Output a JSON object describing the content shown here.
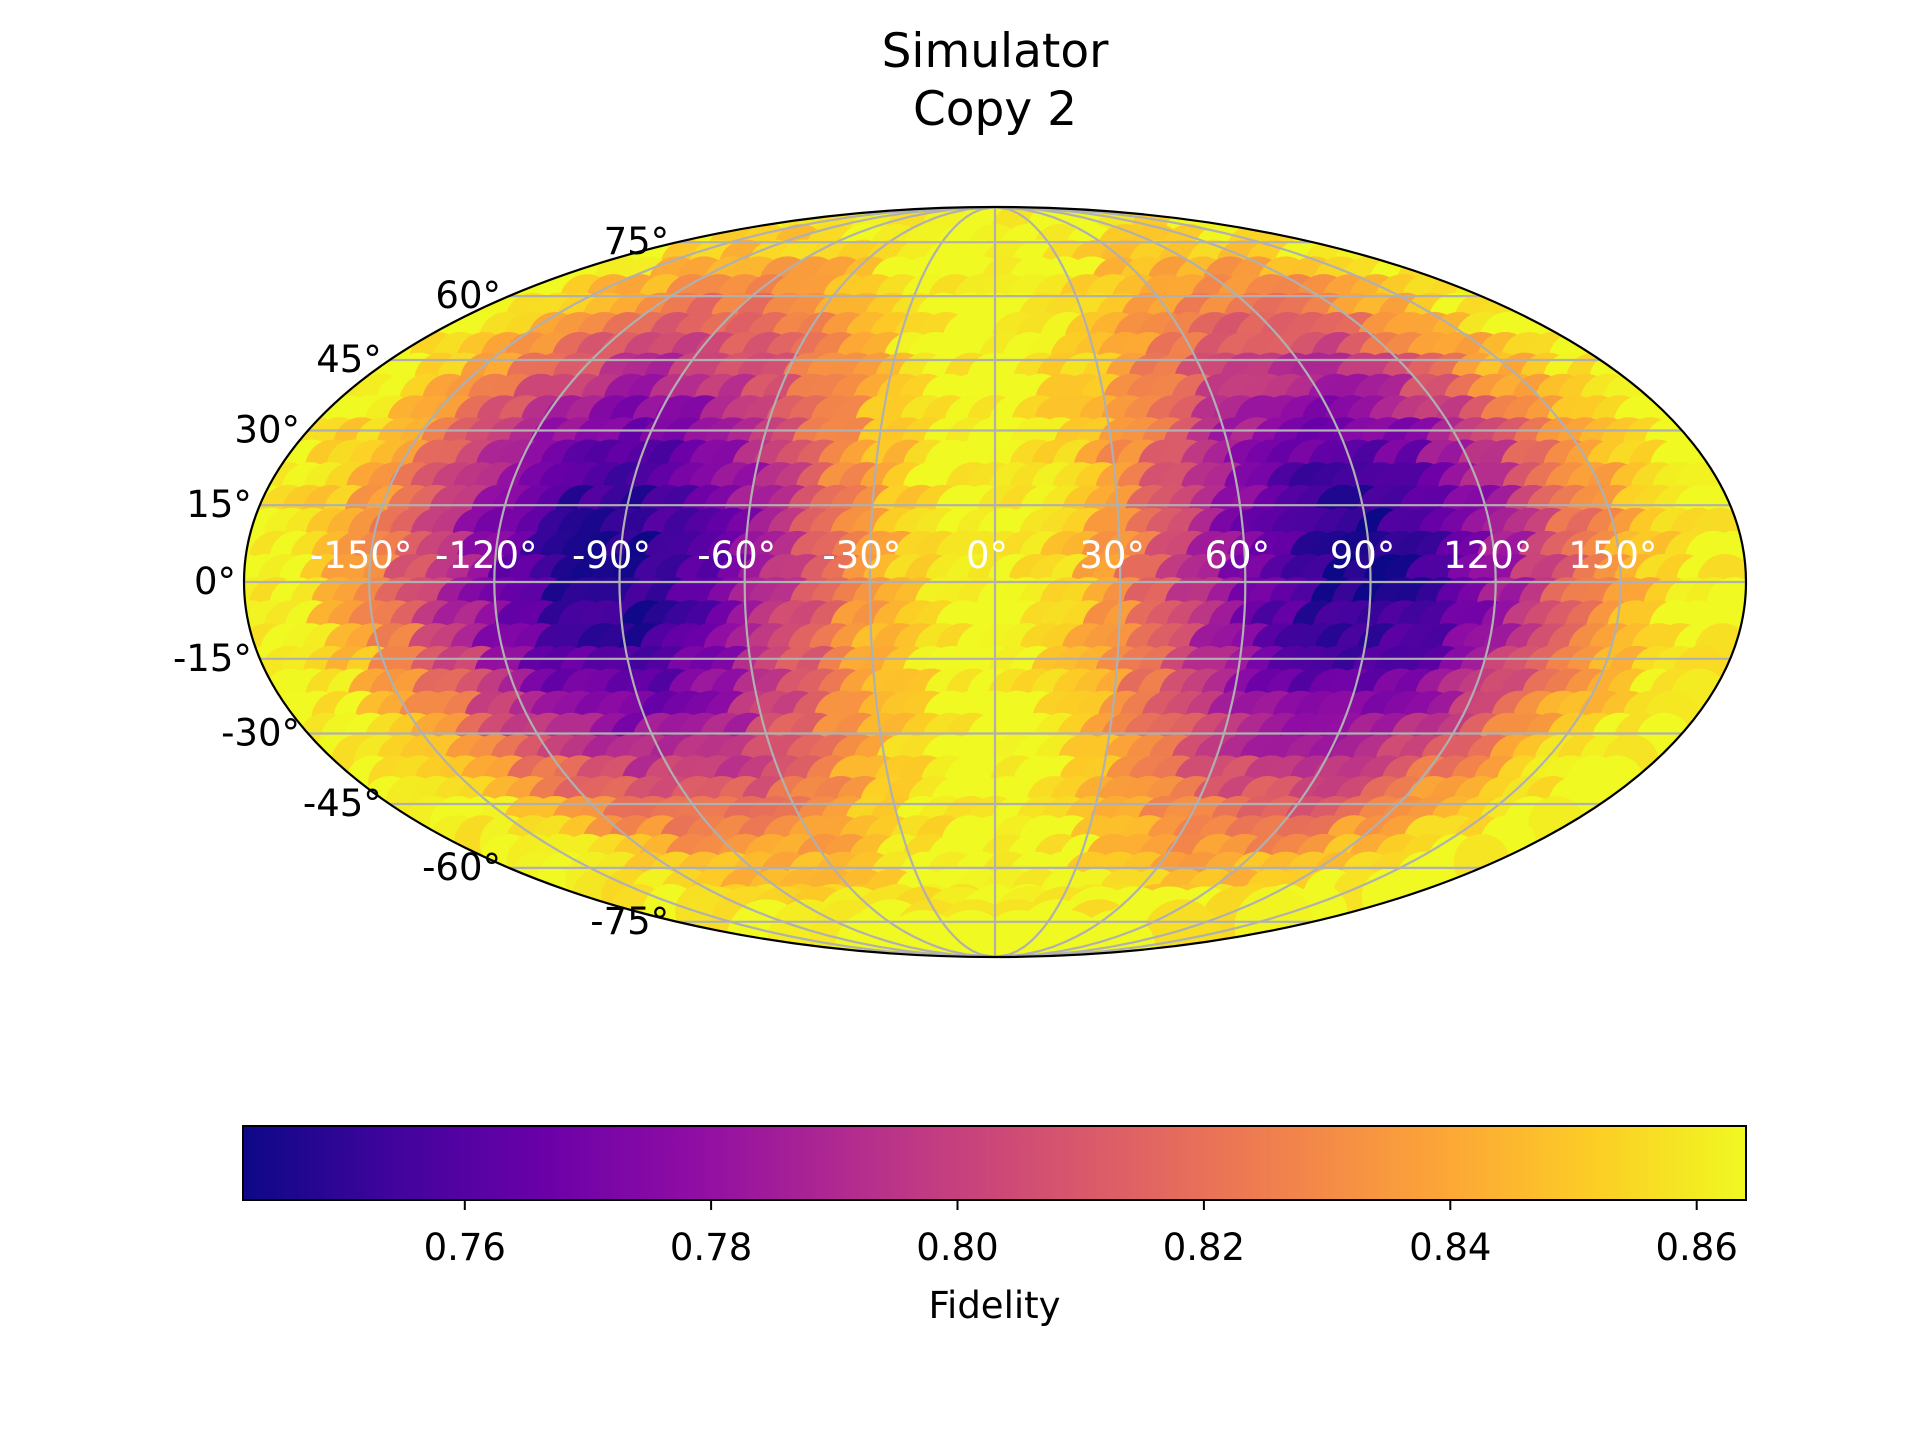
{
  "chart_data": {
    "type": "heatmap",
    "projection": "mollweide",
    "title": [
      "Simulator",
      "Copy 2"
    ],
    "colormap": "plasma",
    "colorbar": {
      "label": "Fidelity",
      "range": [
        0.742,
        0.864
      ],
      "ticks": [
        "0.76",
        "0.78",
        "0.80",
        "0.82",
        "0.84",
        "0.86"
      ],
      "tick_values": [
        0.76,
        0.78,
        0.8,
        0.82,
        0.84,
        0.86
      ],
      "orientation": "horizontal"
    },
    "x_ticks": [
      "-150°",
      "-120°",
      "-90°",
      "-60°",
      "-30°",
      "0°",
      "30°",
      "60°",
      "90°",
      "120°",
      "150°"
    ],
    "x_tick_values": [
      -150,
      -120,
      -90,
      -60,
      -30,
      0,
      30,
      60,
      90,
      120,
      150
    ],
    "y_ticks": [
      "75°",
      "60°",
      "45°",
      "30°",
      "15°",
      "0°",
      "-15°",
      "-30°",
      "-45°",
      "-60°",
      "-75°"
    ],
    "y_tick_values": [
      75,
      60,
      45,
      30,
      15,
      0,
      -15,
      -30,
      -45,
      -60,
      -75
    ],
    "grid": true,
    "field": {
      "description_of_values": "fidelity over longitude/latitude",
      "max_fidelity_regions": [
        {
          "lon": 0,
          "lat": 0,
          "value": 0.86
        },
        {
          "lon": 180,
          "lat": 0,
          "value": 0.86
        },
        {
          "lon": 0,
          "lat": 90,
          "value": 0.86
        },
        {
          "lon": 0,
          "lat": -90,
          "value": 0.86
        }
      ],
      "min_fidelity_regions": [
        {
          "lon": -90,
          "lat": 0,
          "value": 0.745
        },
        {
          "lon": 90,
          "lat": 0,
          "value": 0.745
        }
      ],
      "samples": [
        {
          "lon": 0,
          "lat": 0,
          "value": 0.855
        },
        {
          "lon": -90,
          "lat": 0,
          "value": 0.746
        },
        {
          "lon": 90,
          "lat": 0,
          "value": 0.746
        },
        {
          "lon": -60,
          "lat": 0,
          "value": 0.772
        },
        {
          "lon": 60,
          "lat": 0,
          "value": 0.772
        },
        {
          "lon": -30,
          "lat": 0,
          "value": 0.83
        },
        {
          "lon": 30,
          "lat": 0,
          "value": 0.83
        },
        {
          "lon": -150,
          "lat": 0,
          "value": 0.83
        },
        {
          "lon": 150,
          "lat": 0,
          "value": 0.83
        },
        {
          "lon": 180,
          "lat": 0,
          "value": 0.86
        },
        {
          "lon": -90,
          "lat": 45,
          "value": 0.8
        },
        {
          "lon": 90,
          "lat": 45,
          "value": 0.8
        },
        {
          "lon": 0,
          "lat": 60,
          "value": 0.855
        },
        {
          "lon": 0,
          "lat": -60,
          "value": 0.855
        }
      ]
    }
  }
}
